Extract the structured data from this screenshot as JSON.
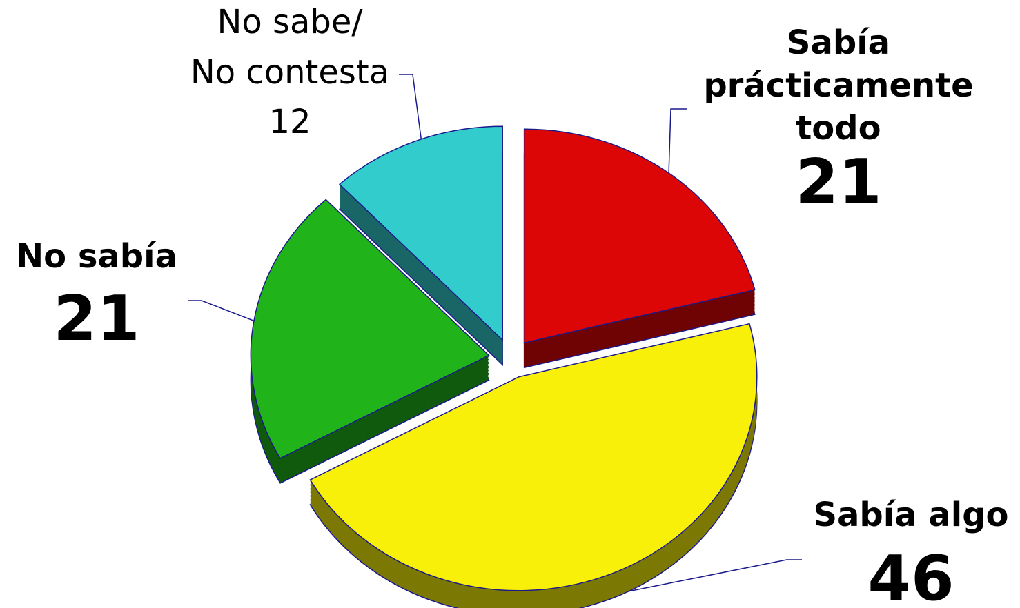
{
  "chart_data": {
    "type": "pie",
    "categories": [
      "Sabía\nprácticamente\ntodo",
      "Sabía algo",
      "No sabía",
      "No sabe/\nNo contesta"
    ],
    "values": [
      21,
      46,
      21,
      12
    ],
    "colors": [
      "#dd0606",
      "#f8f008",
      "#20b41a",
      "#33cccc"
    ]
  }
}
